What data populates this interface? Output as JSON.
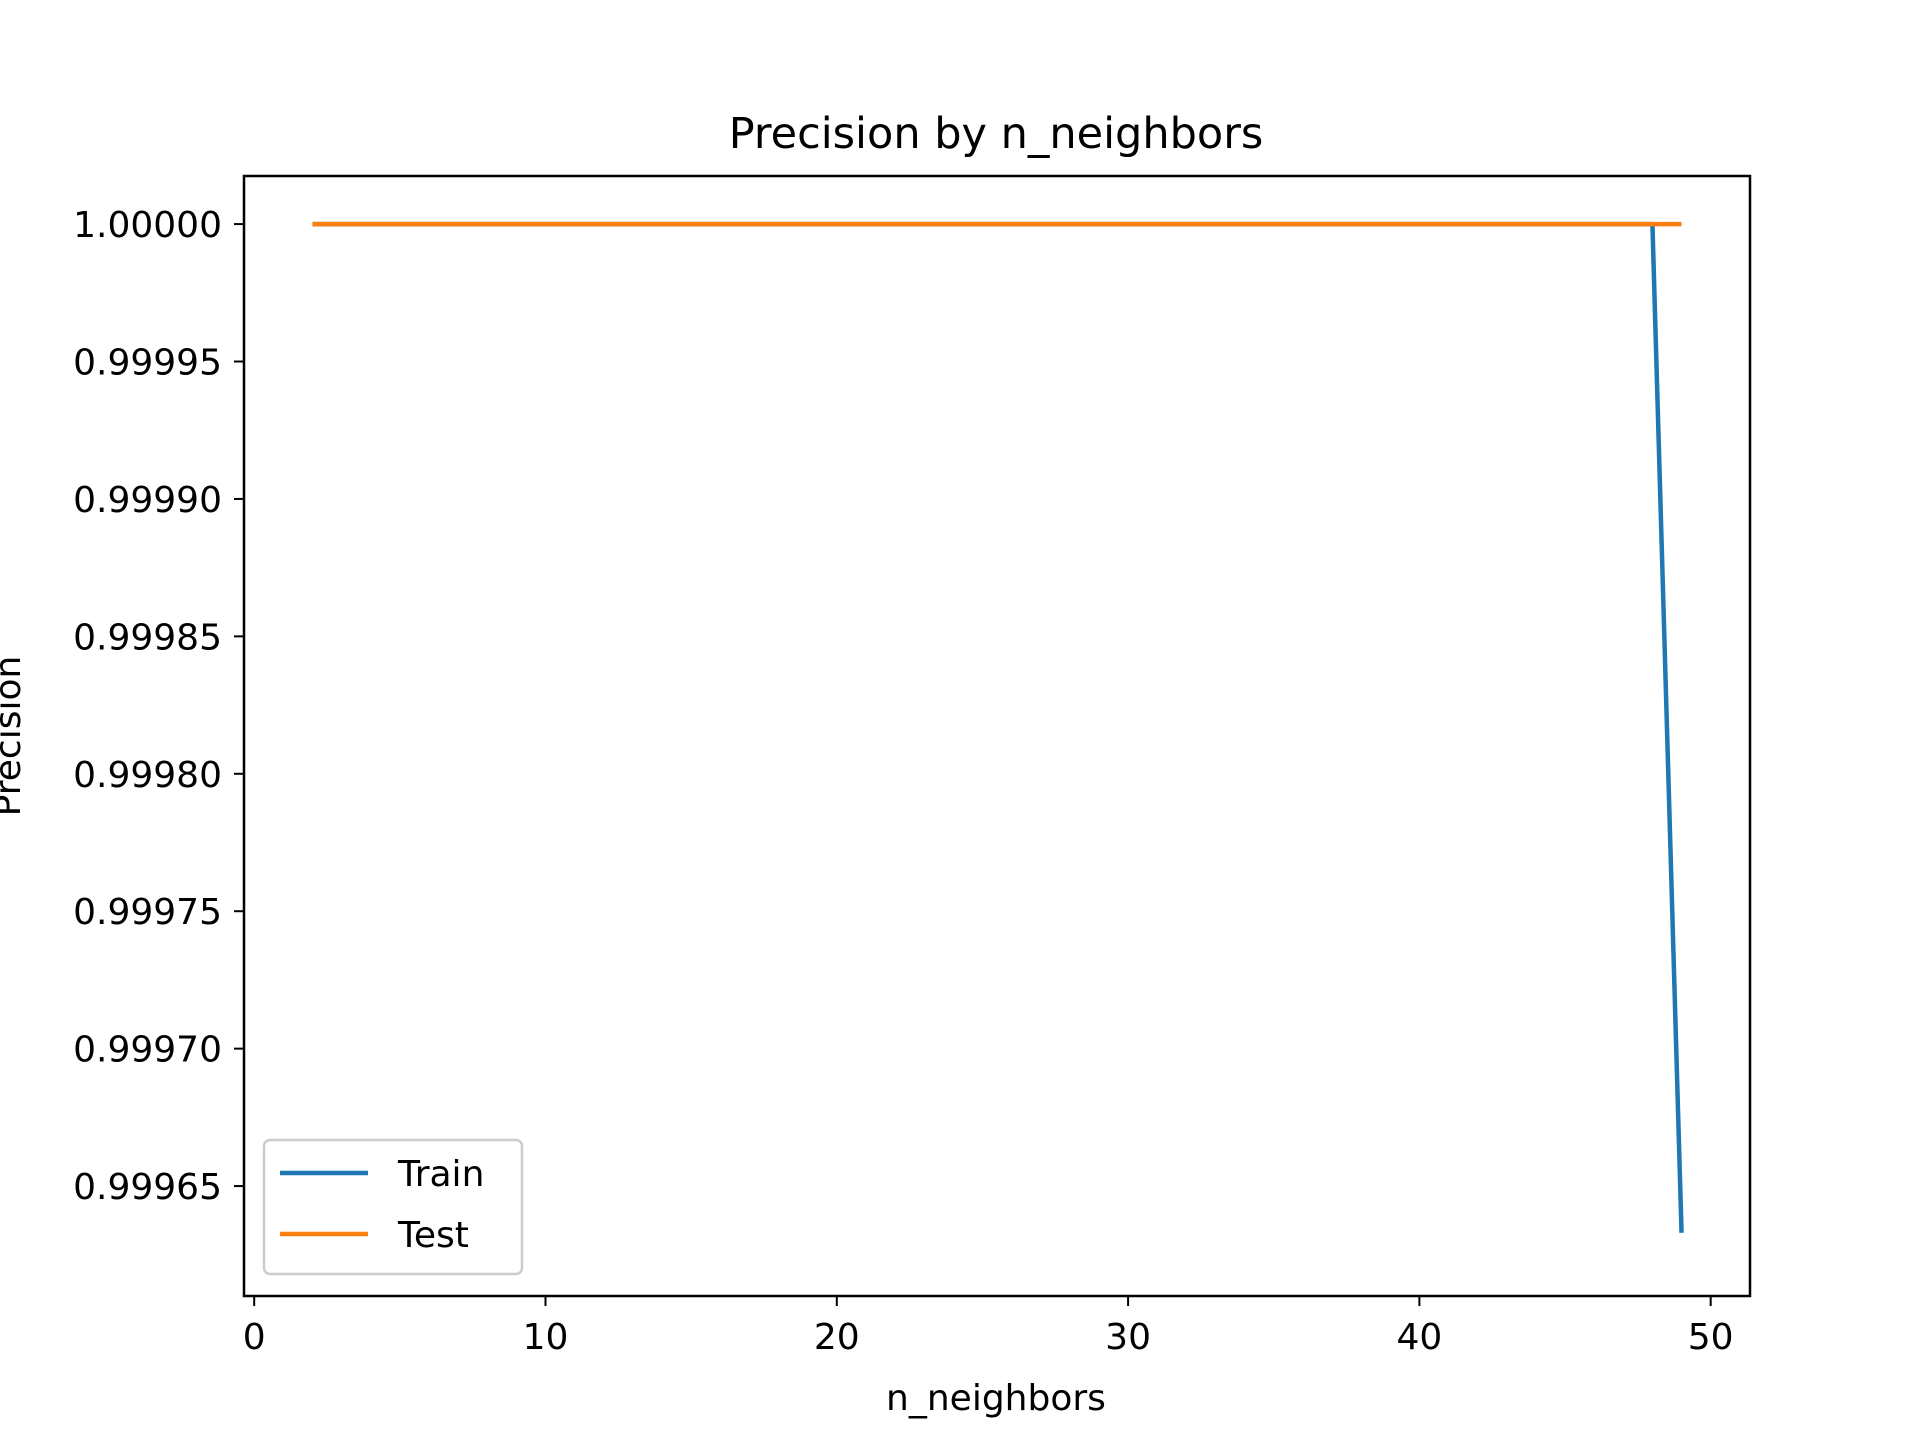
{
  "chart_data": {
    "type": "line",
    "title": "Precision by n_neighbors",
    "xlabel": "n_neighbors",
    "ylabel": "Precision",
    "xlim": [
      -0.35,
      51.35
    ],
    "ylim": [
      0.99961,
      1.0000175
    ],
    "xticks": [
      0,
      10,
      20,
      30,
      40,
      50
    ],
    "xtick_labels": [
      "0",
      "10",
      "20",
      "30",
      "40",
      "50"
    ],
    "yticks": [
      0.99965,
      0.9997,
      0.99975,
      0.9998,
      0.99985,
      0.9999,
      0.99995,
      1.0
    ],
    "ytick_labels": [
      "0.99965",
      "0.99970",
      "0.99975",
      "0.99980",
      "0.99985",
      "0.99990",
      "0.99995",
      "1.00000"
    ],
    "grid": false,
    "legend_position": "lower-left",
    "series": [
      {
        "name": "Train",
        "color": "#1f77b4",
        "x": [
          2,
          3,
          4,
          5,
          6,
          7,
          8,
          9,
          10,
          11,
          12,
          13,
          14,
          15,
          16,
          17,
          18,
          19,
          20,
          21,
          22,
          23,
          24,
          25,
          26,
          27,
          28,
          29,
          30,
          31,
          32,
          33,
          34,
          35,
          36,
          37,
          38,
          39,
          40,
          41,
          42,
          43,
          44,
          45,
          46,
          47,
          48,
          49
        ],
        "y": [
          1.0,
          1.0,
          1.0,
          1.0,
          1.0,
          1.0,
          1.0,
          1.0,
          1.0,
          1.0,
          1.0,
          1.0,
          1.0,
          1.0,
          1.0,
          1.0,
          1.0,
          1.0,
          1.0,
          1.0,
          1.0,
          1.0,
          1.0,
          1.0,
          1.0,
          1.0,
          1.0,
          1.0,
          1.0,
          1.0,
          1.0,
          1.0,
          1.0,
          1.0,
          1.0,
          1.0,
          1.0,
          1.0,
          1.0,
          1.0,
          1.0,
          1.0,
          1.0,
          1.0,
          1.0,
          1.0,
          1.0,
          0.999633
        ]
      },
      {
        "name": "Test",
        "color": "#ff7f0e",
        "x": [
          2,
          3,
          4,
          5,
          6,
          7,
          8,
          9,
          10,
          11,
          12,
          13,
          14,
          15,
          16,
          17,
          18,
          19,
          20,
          21,
          22,
          23,
          24,
          25,
          26,
          27,
          28,
          29,
          30,
          31,
          32,
          33,
          34,
          35,
          36,
          37,
          38,
          39,
          40,
          41,
          42,
          43,
          44,
          45,
          46,
          47,
          48,
          49
        ],
        "y": [
          1.0,
          1.0,
          1.0,
          1.0,
          1.0,
          1.0,
          1.0,
          1.0,
          1.0,
          1.0,
          1.0,
          1.0,
          1.0,
          1.0,
          1.0,
          1.0,
          1.0,
          1.0,
          1.0,
          1.0,
          1.0,
          1.0,
          1.0,
          1.0,
          1.0,
          1.0,
          1.0,
          1.0,
          1.0,
          1.0,
          1.0,
          1.0,
          1.0,
          1.0,
          1.0,
          1.0,
          1.0,
          1.0,
          1.0,
          1.0,
          1.0,
          1.0,
          1.0,
          1.0,
          1.0,
          1.0,
          1.0,
          1.0
        ]
      }
    ]
  }
}
